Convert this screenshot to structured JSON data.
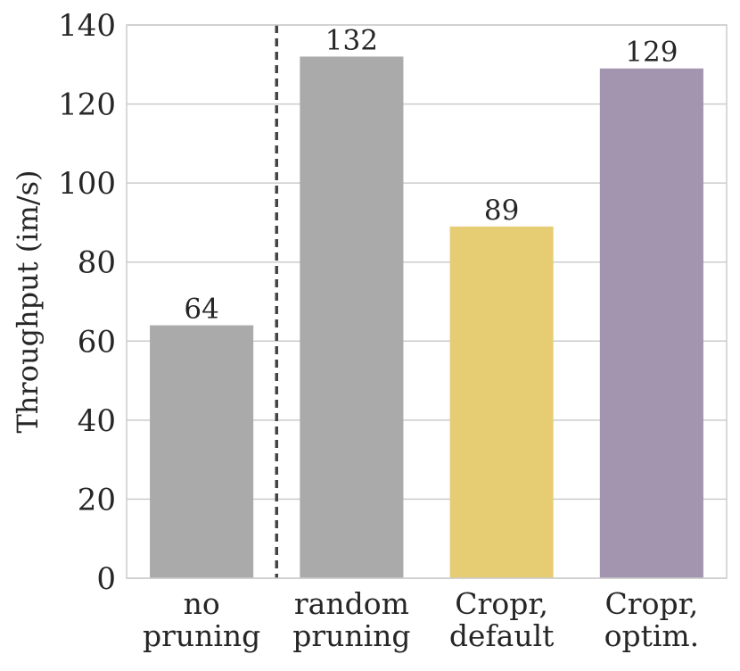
{
  "chart_data": {
    "type": "bar",
    "categories": [
      [
        "no",
        "pruning"
      ],
      [
        "random",
        "pruning"
      ],
      [
        "Cropr,",
        "default"
      ],
      [
        "Cropr,",
        "optim."
      ]
    ],
    "values": [
      64,
      132,
      89,
      129
    ],
    "data_labels": [
      "64",
      "132",
      "89",
      "129"
    ],
    "colors": [
      "#aaaaaa",
      "#aaaaaa",
      "#e6cd74",
      "#a394b0"
    ],
    "title": "",
    "xlabel": "",
    "ylabel": "Throughput (im/s)",
    "ylim": [
      0,
      140
    ],
    "yticks": [
      0,
      20,
      40,
      60,
      80,
      100,
      120,
      140
    ],
    "grid": true,
    "separator_after_category": 0
  }
}
